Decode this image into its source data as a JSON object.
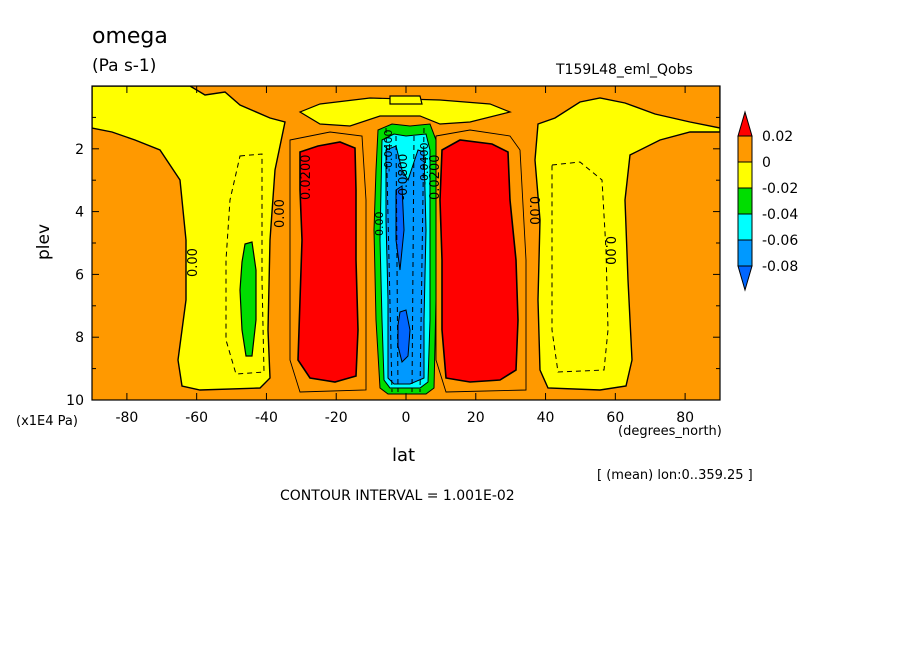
{
  "chart_data": {
    "type": "heatmap",
    "title": "omega",
    "units": "(Pa s-1)",
    "run_label": "T159L48_eml_Qobs",
    "xlabel": "lat",
    "ylabel": "plev",
    "x_unit": "(degrees_north)",
    "y_unit": "(x1E4 Pa)",
    "xlim": [
      -90,
      90
    ],
    "ylim": [
      10,
      0
    ],
    "x_ticks": [
      "-80",
      "-60",
      "-40",
      "-20",
      "0",
      "20",
      "40",
      "60",
      "80"
    ],
    "y_ticks": [
      "2",
      "4",
      "6",
      "8",
      "10"
    ],
    "note": "[ (mean) lon:0..359.25 ]",
    "contour_interval_text": "CONTOUR INTERVAL = 1.001E-02",
    "contour_labels": [
      "0.00",
      "0.00",
      "0.0200",
      "0.0200",
      "0.00",
      "0.00",
      "-0.0800",
      "-0.0400",
      "-0.0400",
      "0.00"
    ],
    "colorbar": {
      "labels": [
        "0.02",
        "0",
        "-0.02",
        "-0.04",
        "-0.06",
        "-0.08"
      ],
      "colors": [
        "#ff0000",
        "#ff9900",
        "#ffff00",
        "#00dd00",
        "#00ffff",
        "#0099ff",
        "#0066ff"
      ],
      "levels": [
        0.02,
        0,
        -0.02,
        -0.04,
        -0.06,
        -0.08
      ]
    },
    "regions": [
      {
        "name": "background",
        "value_range": [
          0,
          0.02
        ]
      },
      {
        "name": "descending-sh-subtropics",
        "center_lat": -30,
        "value_range": [
          0.02,
          0.03
        ]
      },
      {
        "name": "descending-nh-subtropics",
        "center_lat": 22,
        "value_range": [
          0.02,
          0.03
        ]
      },
      {
        "name": "ascending-itcz",
        "center_lat": 0,
        "value_range": [
          -0.09,
          -0.02
        ]
      },
      {
        "name": "ascending-sh-midlat",
        "center_lat": -46,
        "value_range": [
          -0.04,
          -0.02
        ]
      },
      {
        "name": "ascending-nh-midlat",
        "center_lat": 45,
        "value_range": [
          -0.02,
          0
        ]
      }
    ]
  }
}
